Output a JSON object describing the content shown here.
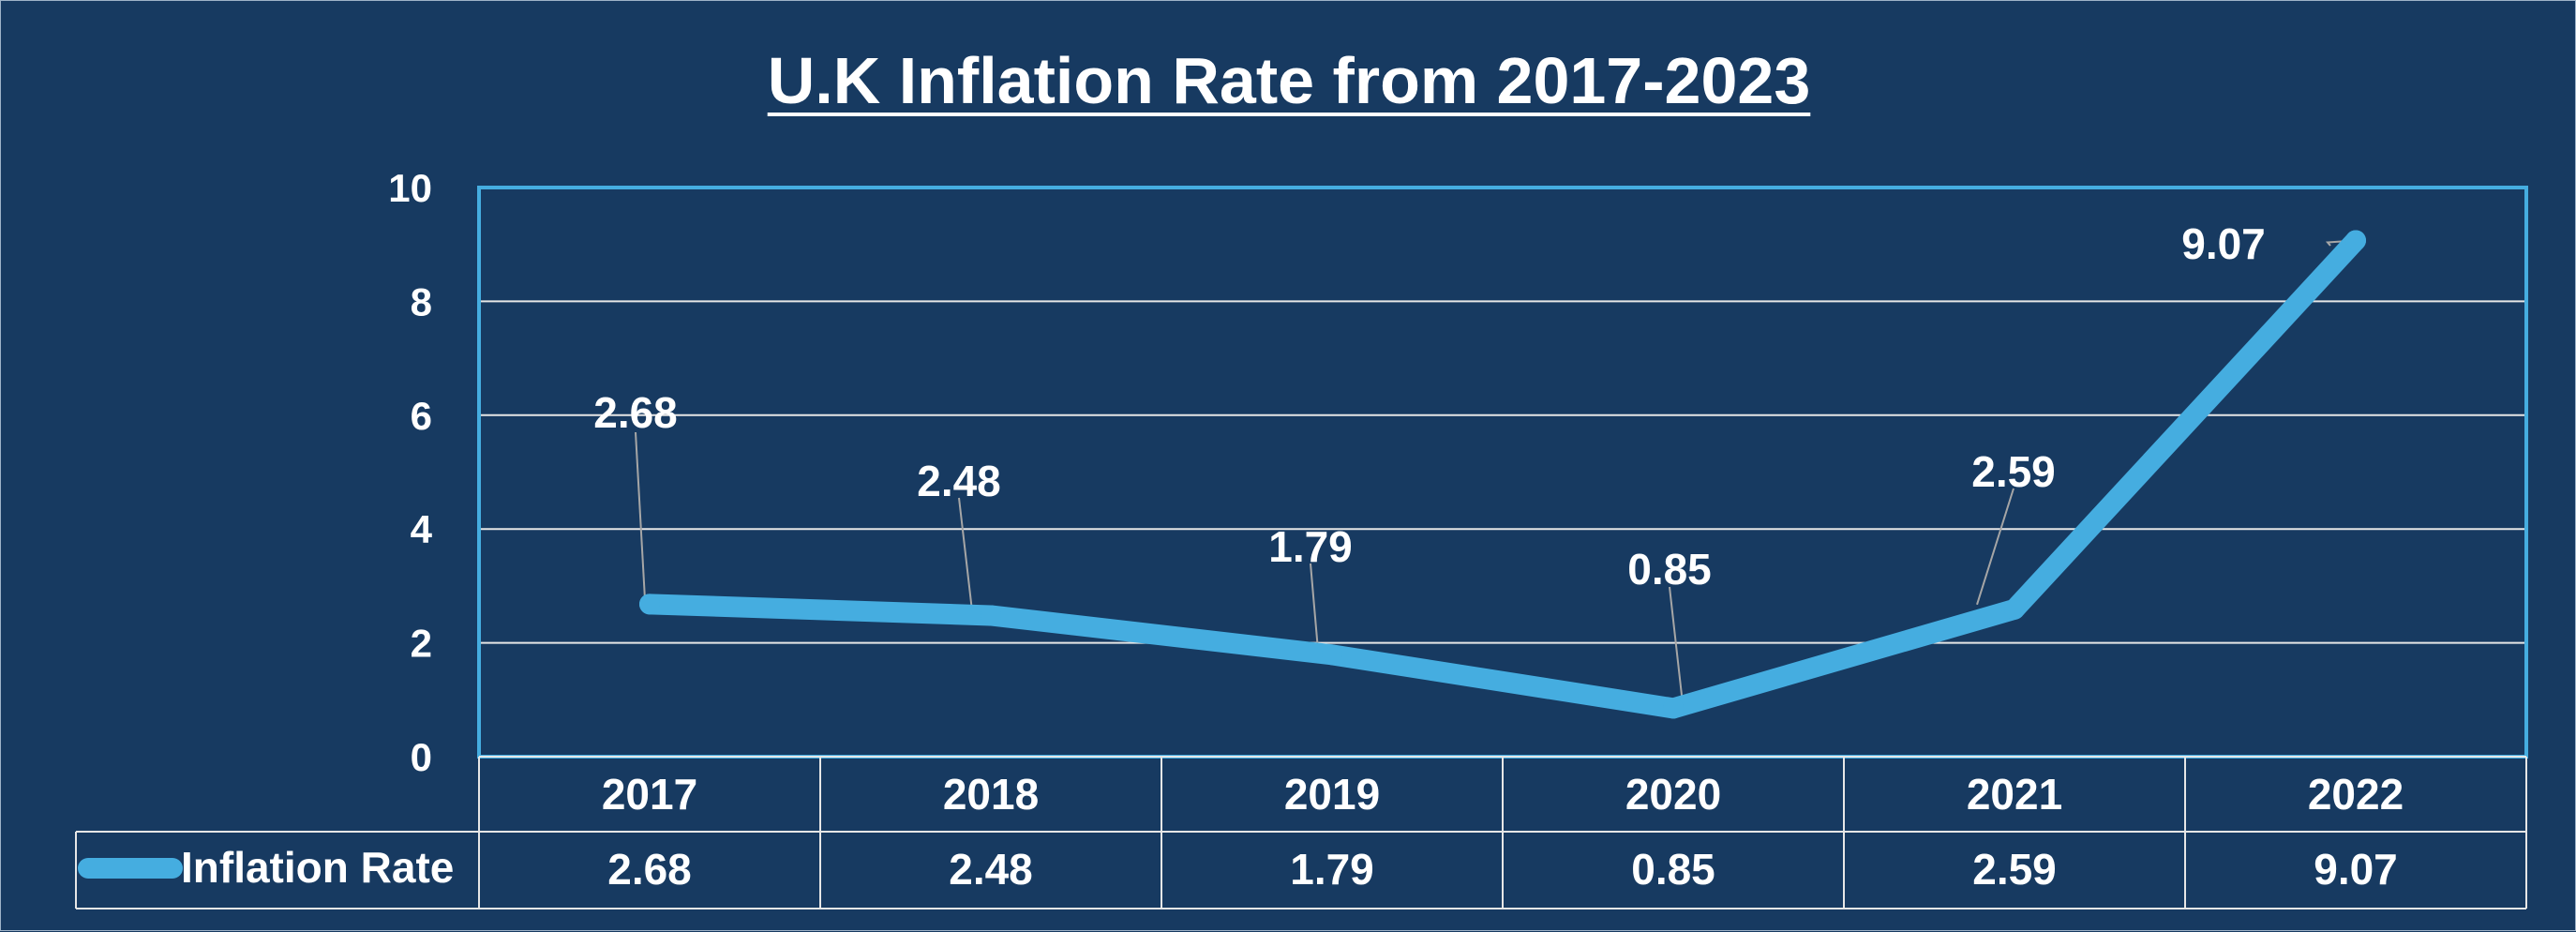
{
  "chart_data": {
    "type": "line",
    "title": "U.K Inflation Rate from 2017-2023",
    "categories": [
      "2017",
      "2018",
      "2019",
      "2020",
      "2021",
      "2022"
    ],
    "series": [
      {
        "name": "Inflation Rate",
        "values": [
          2.68,
          2.48,
          1.79,
          0.85,
          2.59,
          9.07
        ]
      }
    ],
    "y_ticks": [
      "0",
      "2",
      "4",
      "6",
      "8",
      "10"
    ],
    "ylim": [
      0,
      10
    ],
    "grid": true,
    "data_labels": [
      "2.68",
      "2.48",
      "1.79",
      "0.85",
      "2.59",
      "9.07"
    ],
    "data_table": true
  },
  "colors": {
    "background": "#173a61",
    "series_line": "#45ade0",
    "plot_border": "#45ade0",
    "gridline": "#e6e6e6",
    "text": "#ffffff"
  }
}
